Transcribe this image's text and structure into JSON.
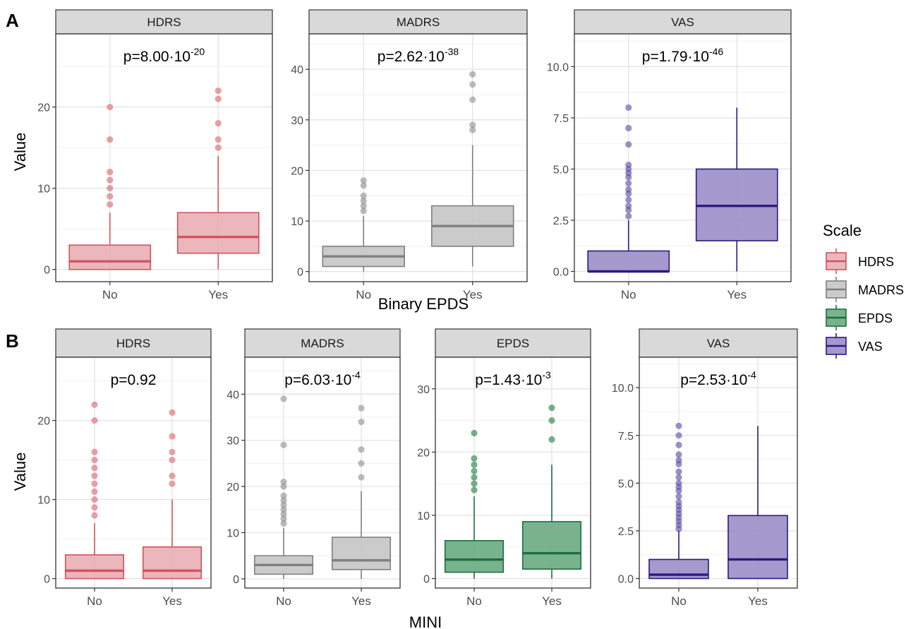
{
  "figure": {
    "panel_A_label": "A",
    "panel_B_label": "B",
    "panel_A_xlabel": "Binary EPDS",
    "panel_B_xlabel": "MINI",
    "ylabel": "Value"
  },
  "legend": {
    "title": "Scale",
    "placement": "right",
    "items": [
      {
        "label": "HDRS",
        "fill": "#E8A9B0",
        "stroke": "#D0545F"
      },
      {
        "label": "MADRS",
        "fill": "#C2C2C2",
        "stroke": "#808080"
      },
      {
        "label": "EPDS",
        "fill": "#62A67A",
        "stroke": "#1E6E3B"
      },
      {
        "label": "VAS",
        "fill": "#9587C4",
        "stroke": "#2A1A80"
      }
    ]
  },
  "colors": {
    "HDRS": {
      "fill": "#E8A9B0",
      "stroke": "#D0545F",
      "dot": "#D7626D"
    },
    "MADRS": {
      "fill": "#C2C2C2",
      "stroke": "#808080",
      "dot": "#8E8E8E"
    },
    "EPDS": {
      "fill": "#62A67A",
      "stroke": "#1E6E3B",
      "dot": "#1E7A3E"
    },
    "VAS": {
      "fill": "#9587C4",
      "stroke": "#2A1A80",
      "dot": "#5A4AA6"
    }
  },
  "chart_data": [
    {
      "type": "box",
      "panel": "A",
      "facet": "HDRS",
      "p_value": {
        "base": "p=8.00·10",
        "exp": "-20"
      },
      "categories": [
        "No",
        "Yes"
      ],
      "yticks": [
        "0",
        "10",
        "20"
      ],
      "ylim": [
        -1.5,
        29
      ],
      "grid": true,
      "boxes": [
        {
          "category": "No",
          "q1": 0,
          "median": 1,
          "q3": 3,
          "whisker_low": 0,
          "whisker_high": 7,
          "outliers": [
            8,
            9,
            10,
            11,
            12,
            16,
            20
          ]
        },
        {
          "category": "Yes",
          "q1": 2,
          "median": 4,
          "q3": 7,
          "whisker_low": 0,
          "whisker_high": 14,
          "outliers": [
            15,
            16,
            18,
            21,
            22
          ]
        }
      ]
    },
    {
      "type": "box",
      "panel": "A",
      "facet": "MADRS",
      "p_value": {
        "base": "p=2.62·10",
        "exp": "-38"
      },
      "categories": [
        "No",
        "Yes"
      ],
      "yticks": [
        "0",
        "10",
        "20",
        "30",
        "40"
      ],
      "ylim": [
        -2,
        47
      ],
      "grid": true,
      "boxes": [
        {
          "category": "No",
          "q1": 1,
          "median": 3,
          "q3": 5,
          "whisker_low": 0,
          "whisker_high": 11,
          "outliers": [
            12,
            13,
            14,
            15,
            17,
            18
          ]
        },
        {
          "category": "Yes",
          "q1": 5,
          "median": 9,
          "q3": 13,
          "whisker_low": 1,
          "whisker_high": 25,
          "outliers": [
            28,
            29,
            34,
            37,
            39
          ]
        }
      ]
    },
    {
      "type": "box",
      "panel": "A",
      "facet": "VAS",
      "p_value": {
        "base": "p=1.79·10",
        "exp": "-46"
      },
      "categories": [
        "No",
        "Yes"
      ],
      "yticks": [
        "0.0",
        "2.5",
        "5.0",
        "7.5",
        "10.0"
      ],
      "ylim": [
        -0.5,
        11.6
      ],
      "grid": true,
      "boxes": [
        {
          "category": "No",
          "q1": 0,
          "median": 0,
          "q3": 1,
          "whisker_low": 0,
          "whisker_high": 2.5,
          "outliers": [
            2.7,
            3.0,
            3.2,
            3.5,
            3.8,
            4.0,
            4.3,
            4.6,
            4.8,
            5.0,
            5.2,
            6.2,
            7.0,
            8.0
          ]
        },
        {
          "category": "Yes",
          "q1": 1.5,
          "median": 3.2,
          "q3": 5,
          "whisker_low": 0,
          "whisker_high": 8,
          "outliers": []
        }
      ]
    },
    {
      "type": "box",
      "panel": "B",
      "facet": "HDRS",
      "p_value": {
        "base": "p=0.92",
        "exp": ""
      },
      "categories": [
        "No",
        "Yes"
      ],
      "yticks": [
        "0",
        "10",
        "20"
      ],
      "ylim": [
        -1.2,
        28
      ],
      "grid": true,
      "boxes": [
        {
          "category": "No",
          "q1": 0,
          "median": 1,
          "q3": 3,
          "whisker_low": 0,
          "whisker_high": 7,
          "outliers": [
            8,
            9,
            10,
            11,
            12,
            13,
            14,
            15,
            16,
            20,
            22
          ]
        },
        {
          "category": "Yes",
          "q1": 0,
          "median": 1,
          "q3": 4,
          "whisker_low": 0,
          "whisker_high": 10,
          "outliers": [
            12,
            13,
            15,
            16,
            18,
            21
          ]
        }
      ]
    },
    {
      "type": "box",
      "panel": "B",
      "facet": "MADRS",
      "p_value": {
        "base": "p=6.03·10",
        "exp": "-4"
      },
      "categories": [
        "No",
        "Yes"
      ],
      "yticks": [
        "0",
        "10",
        "20",
        "30",
        "40"
      ],
      "ylim": [
        -2,
        48
      ],
      "grid": true,
      "boxes": [
        {
          "category": "No",
          "q1": 1,
          "median": 3,
          "q3": 5,
          "whisker_low": 0,
          "whisker_high": 11,
          "outliers": [
            12,
            13,
            14,
            15,
            16,
            17,
            18,
            20,
            21,
            29,
            39
          ]
        },
        {
          "category": "Yes",
          "q1": 2,
          "median": 4,
          "q3": 9,
          "whisker_low": 0,
          "whisker_high": 19,
          "outliers": [
            22,
            25,
            28,
            34,
            37
          ]
        }
      ]
    },
    {
      "type": "box",
      "panel": "B",
      "facet": "EPDS",
      "p_value": {
        "base": "p=1.43·10",
        "exp": "-3"
      },
      "categories": [
        "No",
        "Yes"
      ],
      "yticks": [
        "0",
        "10",
        "20",
        "30"
      ],
      "ylim": [
        -1.5,
        35
      ],
      "grid": true,
      "boxes": [
        {
          "category": "No",
          "q1": 1,
          "median": 3,
          "q3": 6,
          "whisker_low": 0,
          "whisker_high": 13,
          "outliers": [
            14,
            15,
            16,
            17,
            18,
            19,
            23
          ]
        },
        {
          "category": "Yes",
          "q1": 1.5,
          "median": 4,
          "q3": 9,
          "whisker_low": 0,
          "whisker_high": 18,
          "outliers": [
            22,
            25,
            27
          ]
        }
      ]
    },
    {
      "type": "box",
      "panel": "B",
      "facet": "VAS",
      "p_value": {
        "base": "p=2.53·10",
        "exp": "-4"
      },
      "categories": [
        "No",
        "Yes"
      ],
      "yticks": [
        "0.0",
        "2.5",
        "5.0",
        "7.5",
        "10.0"
      ],
      "ylim": [
        -0.5,
        11.6
      ],
      "grid": true,
      "boxes": [
        {
          "category": "No",
          "q1": 0,
          "median": 0.2,
          "q3": 1,
          "whisker_low": 0,
          "whisker_high": 2.5,
          "outliers": [
            2.6,
            2.8,
            3.0,
            3.2,
            3.4,
            3.6,
            3.8,
            4.0,
            4.3,
            4.6,
            4.8,
            5.0,
            5.3,
            5.6,
            6.0,
            6.2,
            6.5,
            7.0,
            7.5,
            8.0
          ]
        },
        {
          "category": "Yes",
          "q1": 0,
          "median": 1,
          "q3": 3.3,
          "whisker_low": 0,
          "whisker_high": 8,
          "outliers": []
        }
      ]
    }
  ]
}
